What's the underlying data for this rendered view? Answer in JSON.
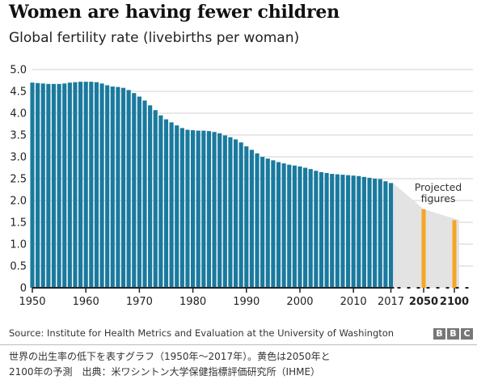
{
  "title": "Women are having fewer children",
  "subtitle": "Global fertility rate (livebirths per woman)",
  "source": "Source: Institute for Health Metrics and Evaluation at the University of Washington",
  "logo_letters": [
    "B",
    "B",
    "C"
  ],
  "caption": {
    "line1": "世界の出生率の低下を表すグラフ（1950年〜2017年）。黄色は2050年と",
    "line2": "2100年の予測　出典：米ワシントン大学保健指標評価研究所（IHME）"
  },
  "colors": {
    "bar": "#1a7a9e",
    "projection_bar": "#f5a623",
    "projection_area": "#e3e3e3",
    "grid": "#d0d0d0",
    "axis": "#222222"
  },
  "chart_data": {
    "type": "bar",
    "title": "Women are having fewer children",
    "subtitle": "Global fertility rate (livebirths per woman)",
    "ylim": [
      0,
      5
    ],
    "yticks": [
      "0",
      "0.5",
      "1.0",
      "1.5",
      "2.0",
      "2.5",
      "3.0",
      "3.5",
      "4.0",
      "4.5",
      "5.0"
    ],
    "xticks": [
      "1950",
      "1960",
      "1970",
      "1980",
      "1990",
      "2000",
      "2010",
      "2017",
      "2050",
      "2100"
    ],
    "grid": true,
    "series": [
      {
        "x": [
          1950,
          1951,
          1952,
          1953,
          1954,
          1955,
          1956,
          1957,
          1958,
          1959,
          1960,
          1961,
          1962,
          1963,
          1964,
          1965,
          1966,
          1967,
          1968,
          1969,
          1970,
          1971,
          1972,
          1973,
          1974,
          1975,
          1976,
          1977,
          1978,
          1979,
          1980,
          1981,
          1982,
          1983,
          1984,
          1985,
          1986,
          1987,
          1988,
          1989,
          1990,
          1991,
          1992,
          1993,
          1994,
          1995,
          1996,
          1997,
          1998,
          1999,
          2000,
          2001,
          2002,
          2003,
          2004,
          2005,
          2006,
          2007,
          2008,
          2009,
          2010,
          2011,
          2012,
          2013,
          2014,
          2015,
          2016,
          2017
        ],
        "values": [
          4.7,
          4.69,
          4.68,
          4.67,
          4.67,
          4.67,
          4.68,
          4.7,
          4.71,
          4.72,
          4.72,
          4.72,
          4.71,
          4.68,
          4.64,
          4.61,
          4.6,
          4.58,
          4.53,
          4.46,
          4.38,
          4.29,
          4.18,
          4.07,
          3.95,
          3.86,
          3.79,
          3.72,
          3.66,
          3.62,
          3.61,
          3.6,
          3.6,
          3.59,
          3.57,
          3.54,
          3.49,
          3.45,
          3.4,
          3.33,
          3.24,
          3.16,
          3.08,
          3.0,
          2.96,
          2.92,
          2.88,
          2.85,
          2.82,
          2.8,
          2.78,
          2.75,
          2.72,
          2.68,
          2.65,
          2.63,
          2.61,
          2.6,
          2.59,
          2.58,
          2.57,
          2.56,
          2.54,
          2.52,
          2.5,
          2.49,
          2.44,
          2.4
        ]
      },
      {
        "name": "Projected figures",
        "x": [
          2050,
          2100
        ],
        "values": [
          1.8,
          1.55
        ]
      }
    ],
    "annotations": [
      "Projected",
      "figures"
    ]
  }
}
